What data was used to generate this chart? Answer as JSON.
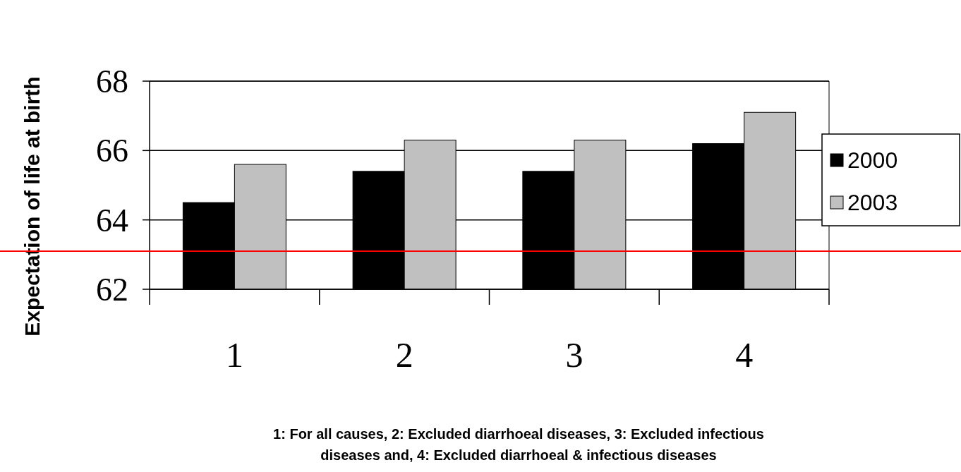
{
  "chart_data": {
    "type": "bar",
    "ylabel": "Expectation of life at birth",
    "categories": [
      "1",
      "2",
      "3",
      "4"
    ],
    "series": [
      {
        "name": "2000",
        "color": "#000000",
        "values": [
          64.5,
          65.4,
          65.4,
          66.2
        ]
      },
      {
        "name": "2003",
        "color": "#c0c0c0",
        "values": [
          65.6,
          66.3,
          66.3,
          67.1
        ]
      }
    ],
    "ylim": [
      62,
      68
    ],
    "yticks": [
      62,
      64,
      66,
      68
    ],
    "grid": "y",
    "legend": "right",
    "ref_lines": [
      {
        "axis": "y",
        "value": 63.1,
        "color": "#ff0000"
      }
    ],
    "annotations": [
      "1: For all causes, 2: Excluded diarrhoeal diseases, 3: Excluded infectious diseases and, 4: Excluded diarrhoeal & infectious diseases"
    ]
  }
}
